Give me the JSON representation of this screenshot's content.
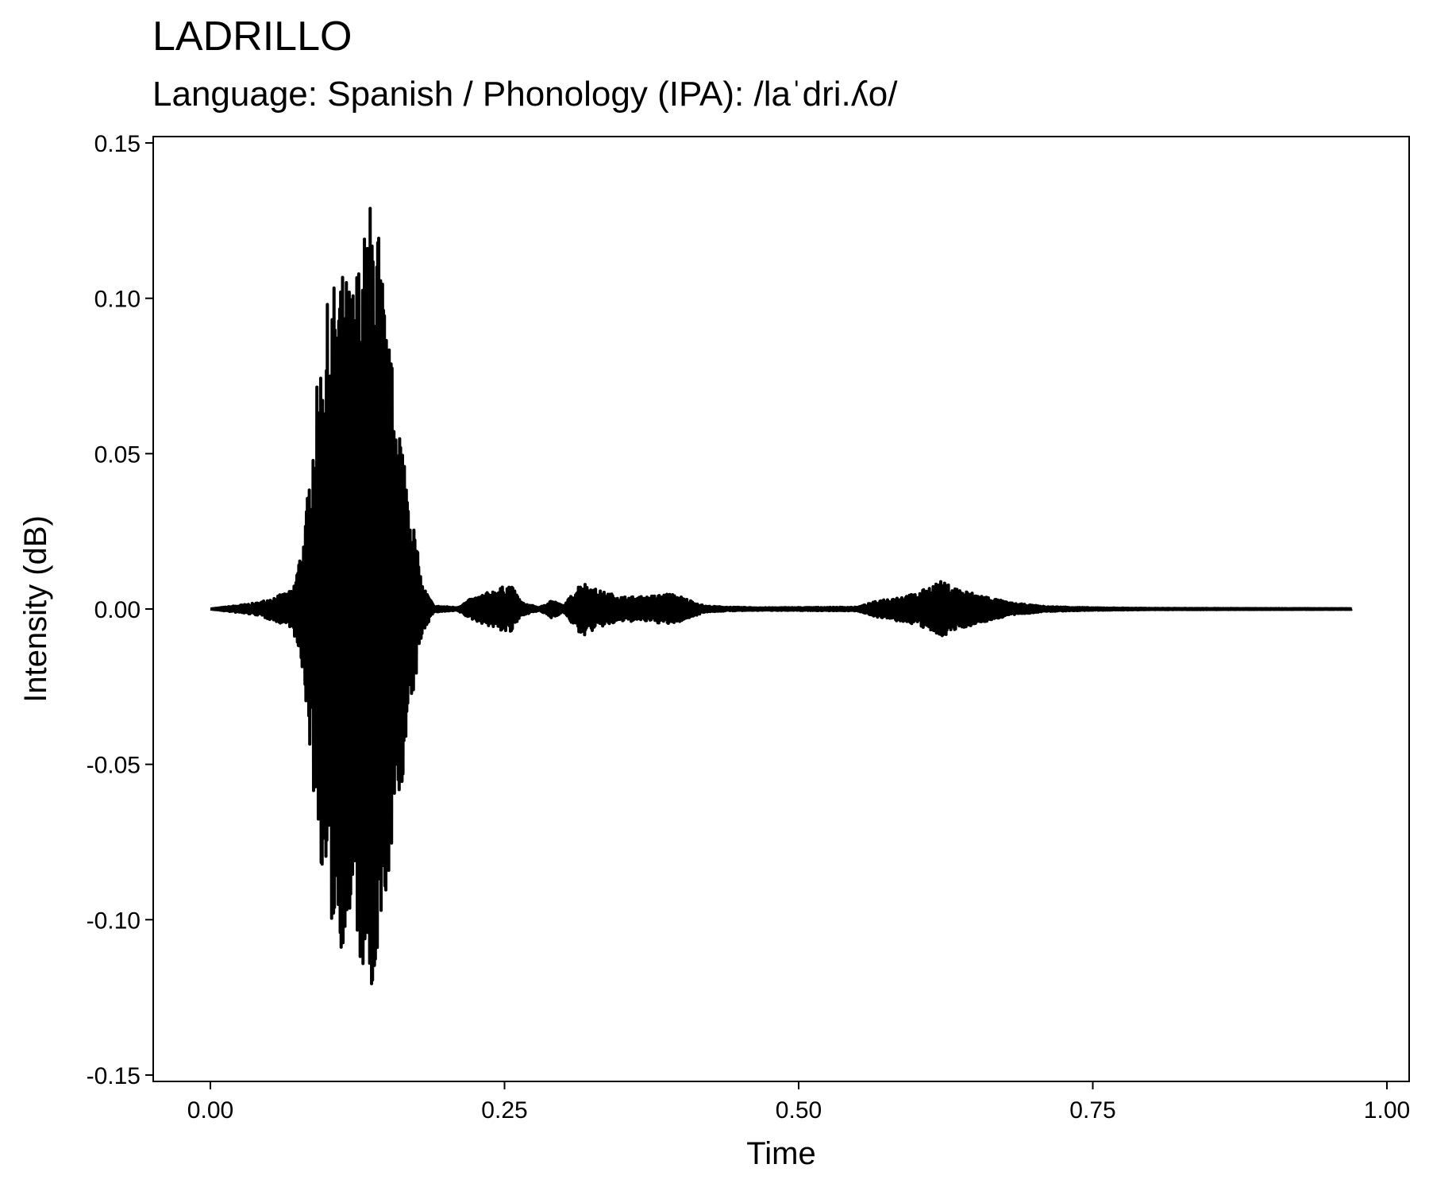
{
  "chart_data": {
    "type": "line",
    "title": "LADRILLO",
    "subtitle": "Language: Spanish / Phonology (IPA): /laˈdri.ʎo/",
    "xlabel": "Time",
    "ylabel": "Intensity (dB)",
    "xlim": [
      -0.05,
      1.02
    ],
    "ylim": [
      -0.152,
      0.152
    ],
    "x_ticks": [
      "0.00",
      "0.25",
      "0.50",
      "0.75",
      "1.00"
    ],
    "y_ticks": [
      "0.15",
      "0.10",
      "0.05",
      "0.00",
      "-0.05",
      "-0.10",
      "-0.15"
    ],
    "grid": false,
    "line_color": "#000000",
    "series": [
      {
        "envelope_time": [
          0.0,
          0.04,
          0.07,
          0.08,
          0.085,
          0.09,
          0.1,
          0.11,
          0.12,
          0.13,
          0.14,
          0.15,
          0.16,
          0.17,
          0.18,
          0.19,
          0.21,
          0.22,
          0.24,
          0.255,
          0.265,
          0.28,
          0.29,
          0.3,
          0.31,
          0.315,
          0.33,
          0.35,
          0.37,
          0.39,
          0.4,
          0.42,
          0.44,
          0.47,
          0.55,
          0.57,
          0.6,
          0.62,
          0.64,
          0.66,
          0.68,
          0.71,
          0.75,
          0.8,
          0.97
        ],
        "envelope_amplitude": [
          0.0,
          0.002,
          0.006,
          0.025,
          0.048,
          0.07,
          0.1,
          0.11,
          0.105,
          0.12,
          0.14,
          0.09,
          0.065,
          0.035,
          0.008,
          0.001,
          0.0005,
          0.003,
          0.006,
          0.008,
          0.002,
          0.0005,
          0.003,
          0.001,
          0.006,
          0.009,
          0.006,
          0.004,
          0.004,
          0.005,
          0.004,
          0.001,
          0.0006,
          0.0004,
          0.0006,
          0.003,
          0.005,
          0.009,
          0.006,
          0.004,
          0.002,
          0.0008,
          0.0004,
          0.0002,
          0.0001
        ]
      }
    ]
  }
}
